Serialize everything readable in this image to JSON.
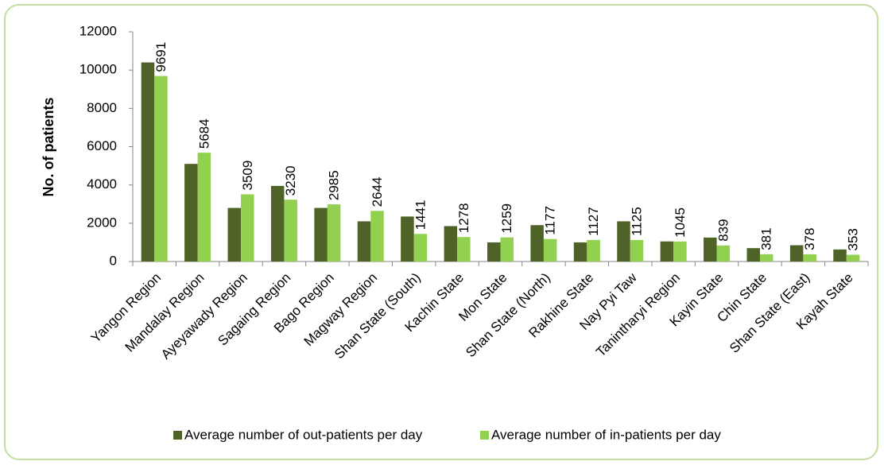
{
  "chart_data": {
    "type": "bar",
    "y_label": "No. of patients",
    "categories": [
      "Yangon Region",
      "Mandalay Region",
      "Ayeyawady Region",
      "Sagaing Region",
      "Bago Region",
      "Magway Region",
      "Shan State (South)",
      "Kachin State",
      "Mon State",
      "Shan State (North)",
      "Rakhine State",
      "Nay Pyi Taw",
      "Tanintharyi Region",
      "Kayin State",
      "Chin State",
      "Shan State (East)",
      "Kayah State"
    ],
    "series": [
      {
        "name": "Average number of out-patients per day",
        "color": "#4f6228",
        "data_labels": false,
        "values": [
          10400,
          5100,
          2800,
          3950,
          2800,
          2100,
          2350,
          1850,
          1000,
          1900,
          1000,
          2100,
          1050,
          1250,
          700,
          850,
          630
        ]
      },
      {
        "name": "Average number of in-patients per day",
        "color": "#92d050",
        "data_labels": true,
        "values": [
          9691,
          5684,
          3509,
          3230,
          2985,
          2644,
          1441,
          1278,
          1259,
          1177,
          1127,
          1125,
          1045,
          839,
          381,
          378,
          353
        ]
      }
    ],
    "ylim": [
      0,
      12000
    ],
    "yticks": [
      0,
      2000,
      4000,
      6000,
      8000,
      10000,
      12000
    ],
    "grid": false,
    "legend": "bottom"
  }
}
